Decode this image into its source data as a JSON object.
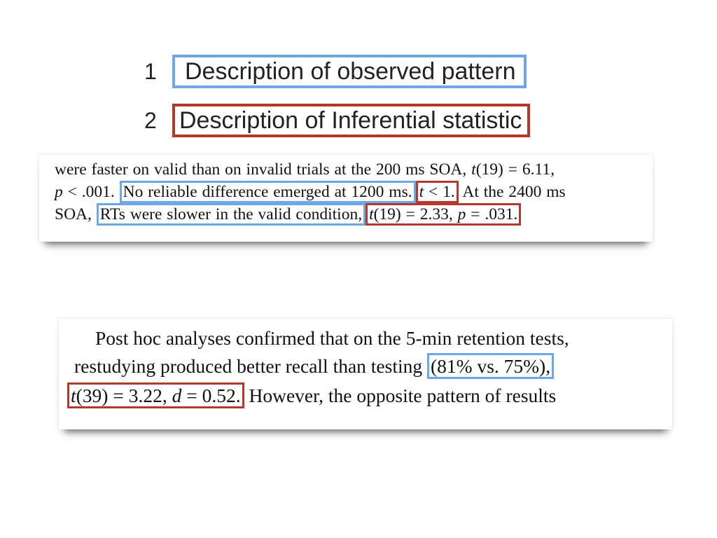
{
  "legend": {
    "items": [
      {
        "number": "1",
        "label": "Description of observed pattern",
        "color": "#6ea6e8"
      },
      {
        "number": "2",
        "label": "Description of Inferential statistic",
        "color": "#b33a2a"
      }
    ]
  },
  "excerpt1": {
    "line1": {
      "text": "were faster on valid than on invalid trials at the 200 ms SOA, ",
      "stat_t": "t",
      "stat_rest": "(19) = 6.11,"
    },
    "line2": {
      "p": "p",
      "p_rest": " < .001. ",
      "pattern": "No reliable difference emerged at 1200 ms.",
      "stat_t": "t",
      "stat_rest": " < 1.",
      "after": " At the 2400 ms"
    },
    "line3": {
      "before": "SOA, ",
      "pattern": "RTs were slower in the valid condition,",
      "stat_t": "t",
      "stat_mid": "(19) = 2.33, ",
      "stat_p": "p",
      "stat_end": " = .031."
    }
  },
  "excerpt2": {
    "line1": "Post hoc analyses confirmed that on the 5-min retention tests,",
    "line2": {
      "before": "restudying produced better recall than testing ",
      "pattern": "(81% vs. 75%),"
    },
    "line3": {
      "stat_t": "t",
      "stat_mid": "(39) = 3.22, ",
      "stat_d": "d",
      "stat_end": " = 0.52.",
      "after": " However, the opposite pattern of results"
    }
  },
  "colors": {
    "pattern_box": "#6ea6e8",
    "statistic_box": "#b33a2a"
  }
}
